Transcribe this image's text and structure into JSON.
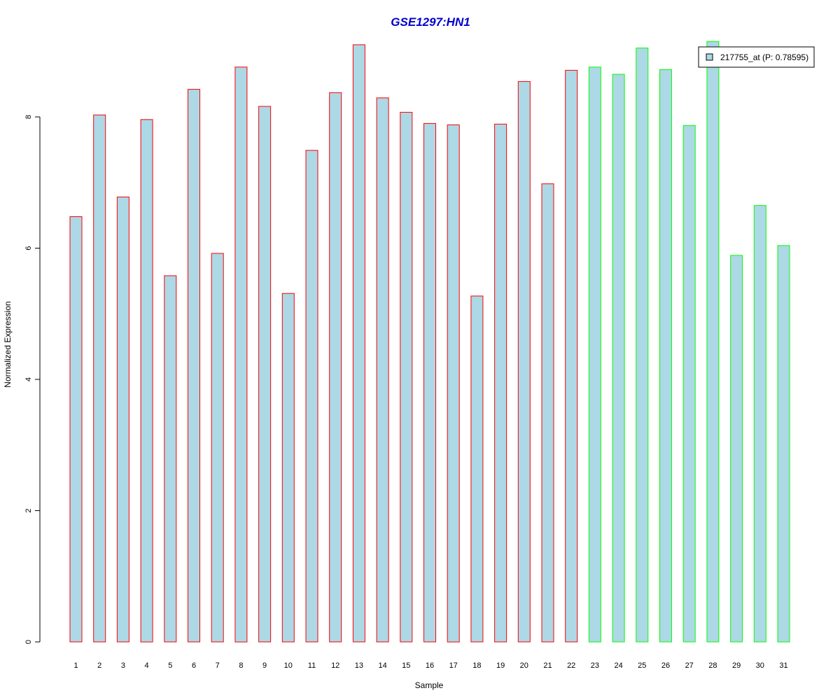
{
  "chart_data": {
    "type": "bar",
    "title": "GSE1297:HN1",
    "xlabel": "Sample",
    "ylabel": "Normalized Expression",
    "categories": [
      "1",
      "2",
      "3",
      "4",
      "5",
      "6",
      "7",
      "8",
      "9",
      "10",
      "11",
      "12",
      "13",
      "14",
      "15",
      "16",
      "17",
      "18",
      "19",
      "20",
      "21",
      "22",
      "23",
      "24",
      "25",
      "26",
      "27",
      "28",
      "29",
      "30",
      "31"
    ],
    "series": [
      {
        "name": "217755_at (P: 0.78595)",
        "values": [
          6.48,
          8.03,
          6.78,
          7.96,
          5.58,
          8.42,
          5.92,
          8.76,
          8.16,
          5.31,
          7.49,
          8.37,
          9.1,
          8.29,
          8.07,
          7.9,
          7.88,
          5.27,
          7.89,
          8.54,
          6.98,
          8.71,
          8.76,
          8.65,
          9.05,
          8.72,
          7.87,
          9.15,
          5.89,
          6.65,
          6.04
        ]
      }
    ],
    "group_border_colors": [
      "#ff0000",
      "#ff0000",
      "#ff0000",
      "#ff0000",
      "#ff0000",
      "#ff0000",
      "#ff0000",
      "#ff0000",
      "#ff0000",
      "#ff0000",
      "#ff0000",
      "#ff0000",
      "#ff0000",
      "#ff0000",
      "#ff0000",
      "#ff0000",
      "#ff0000",
      "#ff0000",
      "#ff0000",
      "#ff0000",
      "#ff0000",
      "#ff0000",
      "#00ff00",
      "#00ff00",
      "#00ff00",
      "#00ff00",
      "#00ff00",
      "#00ff00",
      "#00ff00",
      "#00ff00",
      "#00ff00"
    ],
    "bar_fill": "#add8e6",
    "title_color": "#0000cd",
    "yticks": [
      0,
      2,
      4,
      6,
      8
    ],
    "ylim": [
      0,
      9.3
    ],
    "grid": false,
    "legend_position": "top-right"
  }
}
